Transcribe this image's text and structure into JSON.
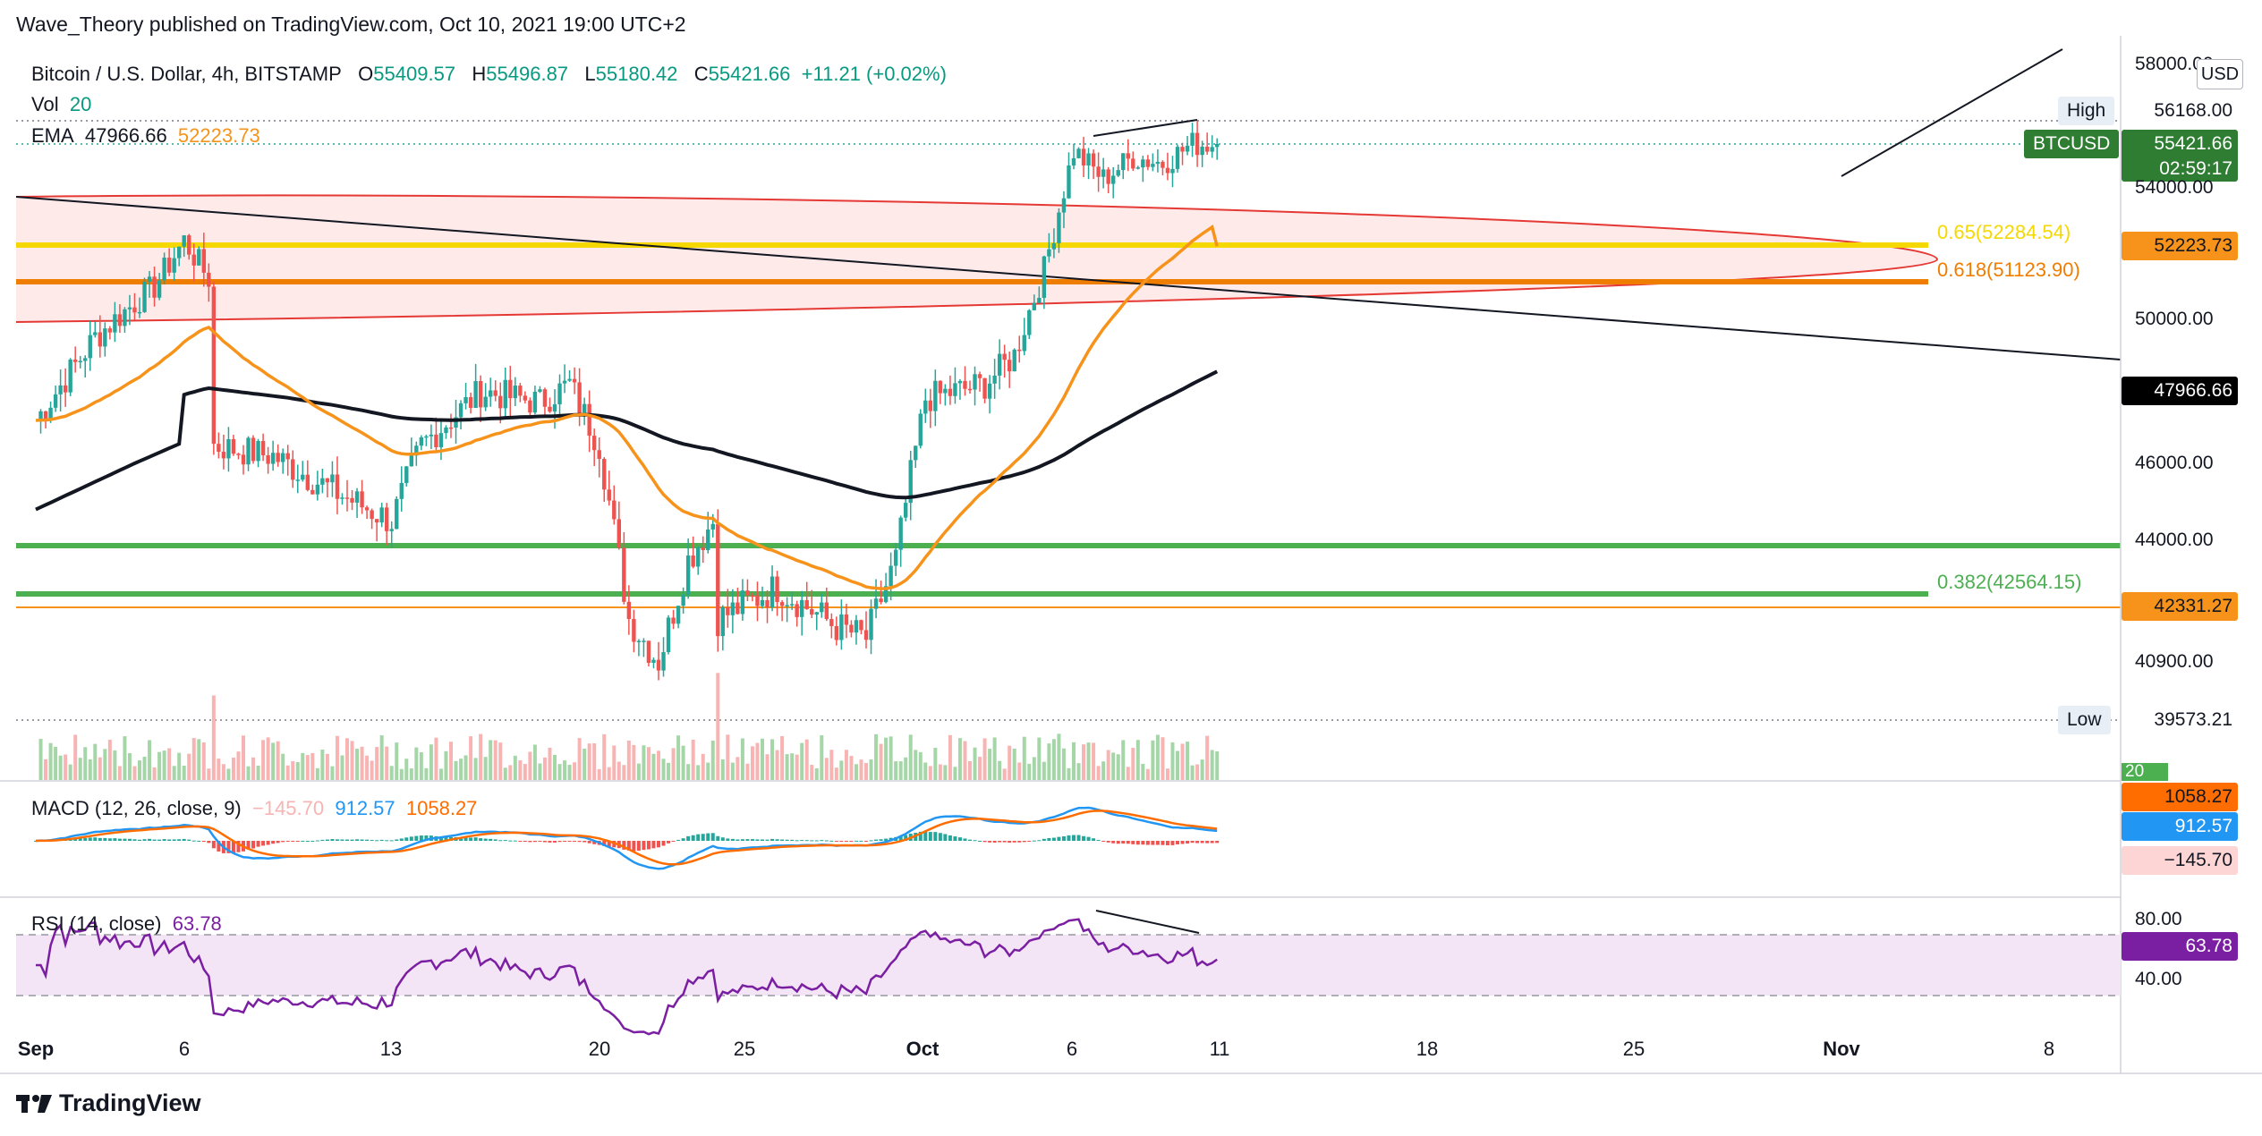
{
  "header": {
    "publisher": "Wave_Theory published on TradingView.com, Oct 10, 2021 19:00 UTC+2"
  },
  "legend": {
    "symbol": "Bitcoin / U.S. Dollar, 4h, BITSTAMP",
    "open_label": "O",
    "open": "55409.57",
    "high_label": "H",
    "high": "55496.87",
    "low_label": "L",
    "low": "55180.42",
    "close_label": "C",
    "close": "55421.66",
    "change": "+11.21 (+0.02%)",
    "vol_label": "Vol",
    "vol": "20",
    "ema_label": "EMA",
    "ema_black": "47966.66",
    "ema_orange": "52223.73"
  },
  "macd_legend": {
    "label": "MACD (12, 26, close, 9)",
    "hist": "−145.70",
    "macd": "912.57",
    "signal": "1058.27"
  },
  "rsi_legend": {
    "label": "RSI (14, close)",
    "value": "63.78"
  },
  "price_axis": {
    "currency": "USD",
    "ticks": [
      "58000.00",
      "54000.00",
      "50000.00",
      "46000.00",
      "44000.00",
      "40900.00"
    ],
    "tags": {
      "high_label": "High",
      "high": "56168.00",
      "symbol": "BTCUSD",
      "last": "55421.66",
      "countdown": "02:59:17",
      "ema_orange": "52223.73",
      "ema_black": "47966.66",
      "level": "42331.27",
      "low_label": "Low",
      "low": "39573.21",
      "vol": "20"
    }
  },
  "macd_axis": {
    "signal": "1058.27",
    "macd": "912.57",
    "hist": "−145.70"
  },
  "rsi_axis": {
    "ticks": [
      "80.00",
      "40.00"
    ],
    "value": "63.78"
  },
  "fib_labels": {
    "f065": "0.65(52284.54)",
    "f0618": "0.618(51123.90)",
    "f0382": "0.382(42564.15)"
  },
  "time_axis": [
    "Sep",
    "6",
    "13",
    "20",
    "25",
    "Oct",
    "6",
    "11",
    "18",
    "25",
    "Nov",
    "8"
  ],
  "footer": {
    "brand": "TradingView"
  },
  "colors": {
    "up": "#26a69a",
    "down": "#ef5350",
    "ema_short": "#f7931a",
    "ema_long": "#131722",
    "fib_065": "#f5d800",
    "fib_0618": "#ef7d00",
    "fib_0382": "#4caf50",
    "macd": "#2196f3",
    "signal": "#ff6d00",
    "rsi": "#7b1fa2",
    "rsi_band": "#f3e5f5"
  },
  "chart_data": {
    "type": "candlestick",
    "symbol": "Bitcoin / U.S. Dollar",
    "interval": "4h",
    "x_range": [
      "2021-09-01",
      "2021-11-10"
    ],
    "y_range": [
      39000,
      58500
    ],
    "ohlc_last": {
      "open": 55409.57,
      "high": 55496.87,
      "low": 55180.42,
      "close": 55421.66,
      "change": 11.21,
      "change_pct": 0.02
    },
    "price_path": [
      [
        "2021-09-01",
        47200
      ],
      [
        "2021-09-03",
        49500
      ],
      [
        "2021-09-05",
        51000
      ],
      [
        "2021-09-06",
        52400
      ],
      [
        "2021-09-07",
        51000
      ],
      [
        "2021-09-07",
        46500
      ],
      [
        "2021-09-09",
        46200
      ],
      [
        "2021-09-11",
        45300
      ],
      [
        "2021-09-13",
        44500
      ],
      [
        "2021-09-14",
        46500
      ],
      [
        "2021-09-16",
        48000
      ],
      [
        "2021-09-18",
        47700
      ],
      [
        "2021-09-19",
        48200
      ],
      [
        "2021-09-20",
        46500
      ],
      [
        "2021-09-21",
        42000
      ],
      [
        "2021-09-22",
        40900
      ],
      [
        "2021-09-23",
        43500
      ],
      [
        "2021-09-24",
        44700
      ],
      [
        "2021-09-24",
        42000
      ],
      [
        "2021-09-26",
        42800
      ],
      [
        "2021-09-28",
        41800
      ],
      [
        "2021-09-29",
        41500
      ],
      [
        "2021-09-30",
        43500
      ],
      [
        "2021-10-01",
        47800
      ],
      [
        "2021-10-03",
        48200
      ],
      [
        "2021-10-04",
        49000
      ],
      [
        "2021-10-05",
        51500
      ],
      [
        "2021-10-06",
        55200
      ],
      [
        "2021-10-07",
        54300
      ],
      [
        "2021-10-08",
        55000
      ],
      [
        "2021-10-09",
        54800
      ],
      [
        "2021-10-10",
        55421.66
      ]
    ],
    "ema_short": {
      "label": "EMA",
      "last": 52223.73
    },
    "ema_long": {
      "label": "EMA",
      "last": 47966.66
    },
    "high": 56168.0,
    "low": 39573.21,
    "fib_levels": [
      {
        "ratio": 0.65,
        "price": 52284.54
      },
      {
        "ratio": 0.618,
        "price": 51123.9
      },
      {
        "ratio": 0.382,
        "price": 42564.15
      }
    ],
    "horizontal_levels": [
      42331.27
    ],
    "macd": {
      "params": "12, 26, close, 9",
      "histogram": -145.7,
      "macd": 912.57,
      "signal": 1058.27
    },
    "rsi": {
      "params": "14, close",
      "value": 63.78,
      "upper": 80,
      "lower": 40
    },
    "volume_last": 20
  }
}
